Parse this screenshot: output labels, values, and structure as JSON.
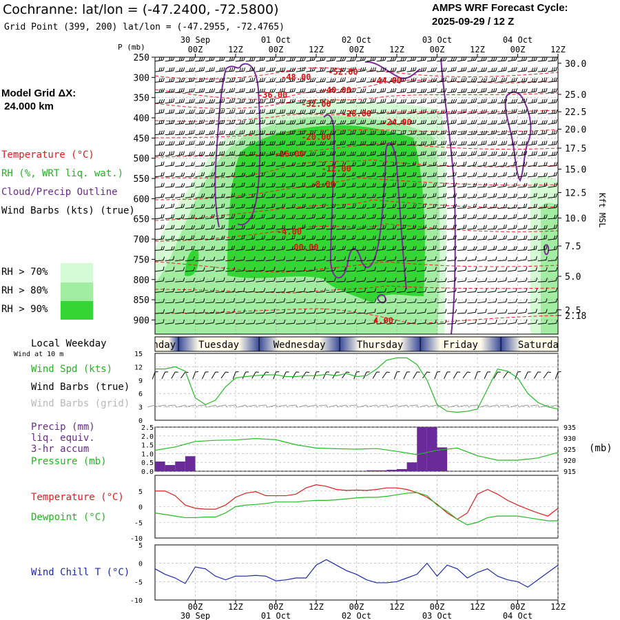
{
  "header": {
    "title": "Cochranne:  lat/lon = (-47.2400, -72.5800)",
    "grid_point": "Grid Point (399, 200) lat/lon = (-47.2955, -72.4765)",
    "forecast_line1": "AMPS WRF Forecast Cycle:",
    "forecast_line2": "2025-09-29 / 12  Z",
    "model_grid_line1": "Model Grid ΔX:",
    "model_grid_line2": " 24.000 km"
  },
  "legend": {
    "temperature": "Temperature (°C)",
    "rh": "RH (%, WRT liq. wat.)",
    "cloud": "Cloud/Precip Outline",
    "wind": "Wind Barbs (kts) (true)",
    "rh70": "RH > 70%",
    "rh80": "RH > 80%",
    "rh90": "RH > 90%",
    "rh_colors": [
      "#d4fbd4",
      "#a3eda3",
      "#33d633"
    ],
    "local_weekday": "Local Weekday",
    "wind_at_10m": "Wind at 10 m",
    "wind_spd": "Wind Spd (kts)",
    "wind_barbs_true": "Wind Barbs (true)",
    "wind_barbs_grid": "Wind Barbs (grid)",
    "precip_1": "Precip (mm)",
    "precip_2": "liq. equiv.",
    "precip_3": "3-hr accum",
    "pressure": "Pressure (mb)",
    "temp2": "Temperature (°C)",
    "dewpoint": "Dewpoint (°C)",
    "windchill": "Wind Chill T (°C)",
    "pressure_unit": "(mb)",
    "kft_label": "Kft MSL",
    "p_label": "P (mb)"
  },
  "chart_data": {
    "type": "meteogram",
    "time_ticks": [
      "00Z",
      "12Z",
      "00Z",
      "12Z",
      "00Z",
      "12Z",
      "00Z",
      "12Z",
      "00Z",
      "12Z"
    ],
    "time_hours": [
      12,
      24,
      36,
      48,
      60,
      72,
      84,
      96,
      108,
      120
    ],
    "date_labels": [
      {
        "label": "30 Sep",
        "hour": 12
      },
      {
        "label": "01 Oct",
        "hour": 36
      },
      {
        "label": "02 Oct",
        "hour": 60
      },
      {
        "label": "03 Oct",
        "hour": 84
      },
      {
        "label": "04 Oct",
        "hour": 108
      }
    ],
    "x_range_hours": [
      0,
      120
    ],
    "weekdays": [
      {
        "label": "Monday",
        "start": -5,
        "end": 7
      },
      {
        "label": "Tuesday",
        "start": 7,
        "end": 31
      },
      {
        "label": "Wednesday",
        "start": 31,
        "end": 55
      },
      {
        "label": "Thursday",
        "start": 55,
        "end": 79
      },
      {
        "label": "Friday",
        "start": 79,
        "end": 103
      },
      {
        "label": "Saturday",
        "start": 103,
        "end": 127
      }
    ],
    "cross_section": {
      "pressure_ticks": [
        250,
        300,
        350,
        400,
        450,
        500,
        550,
        600,
        650,
        700,
        750,
        800,
        850,
        900
      ],
      "p_range": [
        250,
        935
      ],
      "height_ticks_kft": [
        {
          "label": "30.0",
          "p": 265
        },
        {
          "label": "25.0",
          "p": 342
        },
        {
          "label": "22.5",
          "p": 385
        },
        {
          "label": "20.0",
          "p": 428
        },
        {
          "label": "17.5",
          "p": 475
        },
        {
          "label": "15.0",
          "p": 527
        },
        {
          "label": "12.5",
          "p": 585
        },
        {
          "label": "10.0",
          "p": 648
        },
        {
          "label": "7.5",
          "p": 717
        },
        {
          "label": "5.0",
          "p": 792
        },
        {
          "label": "2.5",
          "p": 875
        },
        {
          "label": "2.18",
          "p": 889
        }
      ],
      "temperature_labels": [
        {
          "label": "-48.00",
          "h": 42,
          "p": 298
        },
        {
          "label": "-52.00",
          "h": 56,
          "p": 285
        },
        {
          "label": "-44.00",
          "h": 69,
          "p": 306
        },
        {
          "label": "-40.00",
          "h": 54,
          "p": 330
        },
        {
          "label": "-36.00",
          "h": 35,
          "p": 342
        },
        {
          "label": "-32.00",
          "h": 48,
          "p": 364
        },
        {
          "label": "-28.00",
          "h": 60,
          "p": 388
        },
        {
          "label": "-24.00",
          "h": 72,
          "p": 409
        },
        {
          "label": "-20.00",
          "h": 48,
          "p": 446
        },
        {
          "label": "-16.00",
          "h": 40,
          "p": 488
        },
        {
          "label": "-12.00",
          "h": 54,
          "p": 524
        },
        {
          "label": "-8.00",
          "h": 50,
          "p": 563
        },
        {
          "label": "-4.00",
          "h": 40,
          "p": 680
        },
        {
          "label": "00.00",
          "h": 45,
          "p": 719
        },
        {
          "label": "4.00",
          "h": 68,
          "p": 900
        }
      ]
    },
    "surface_wind": {
      "ylim": [
        0,
        15
      ],
      "yticks": [
        0,
        3,
        6,
        9,
        12,
        15
      ],
      "x": [
        0,
        3,
        6,
        9,
        12,
        15,
        18,
        21,
        24,
        27,
        30,
        33,
        36,
        39,
        42,
        45,
        48,
        51,
        54,
        57,
        60,
        63,
        66,
        69,
        72,
        75,
        78,
        81,
        84,
        87,
        90,
        93,
        96,
        99,
        102,
        105,
        108,
        111,
        114,
        117,
        120
      ],
      "speed_kts": [
        11.5,
        11.5,
        12.0,
        11.0,
        5.0,
        3.5,
        4.5,
        7.5,
        9.5,
        9.8,
        10.0,
        10.2,
        10.2,
        9.8,
        9.8,
        10.0,
        10.0,
        10.3,
        10.0,
        10.5,
        9.8,
        10.0,
        11.5,
        13.5,
        14.0,
        14.0,
        12.5,
        9.0,
        3.5,
        2.0,
        1.8,
        2.0,
        2.5,
        7.0,
        11.5,
        11.0,
        9.5,
        6.0,
        4.0,
        3.0,
        2.5
      ]
    },
    "precip_pressure": {
      "precip_ylim": [
        0,
        2.5
      ],
      "precip_yticks": [
        0.0,
        0.5,
        1.0,
        1.5,
        2.0,
        2.5
      ],
      "pressure_ylim": [
        915,
        935
      ],
      "pressure_yticks": [
        915,
        920,
        925,
        930,
        935
      ],
      "precip_bars": [
        {
          "h": 0,
          "mm": 0.55
        },
        {
          "h": 3,
          "mm": 0.35
        },
        {
          "h": 6,
          "mm": 0.55
        },
        {
          "h": 9,
          "mm": 0.85
        },
        {
          "h": 63,
          "mm": 0.05
        },
        {
          "h": 66,
          "mm": 0.05
        },
        {
          "h": 69,
          "mm": 0.08
        },
        {
          "h": 72,
          "mm": 0.12
        },
        {
          "h": 75,
          "mm": 0.5
        },
        {
          "h": 78,
          "mm": 2.5
        },
        {
          "h": 81,
          "mm": 2.5
        },
        {
          "h": 84,
          "mm": 1.35
        }
      ],
      "pressure_x": [
        0,
        6,
        12,
        18,
        24,
        30,
        36,
        42,
        48,
        54,
        60,
        66,
        72,
        78,
        84,
        90,
        96,
        102,
        108,
        114,
        120
      ],
      "pressure_mb": [
        924.5,
        926.0,
        928.5,
        929.0,
        929.2,
        929.8,
        929.3,
        927.0,
        925.5,
        925.2,
        925.0,
        925.3,
        924.0,
        922.5,
        924.5,
        925.5,
        922.0,
        920.0,
        920.0,
        921.0,
        923.5
      ]
    },
    "temp_dew": {
      "ylim": [
        -10,
        10
      ],
      "yticks": [
        -10,
        -5,
        0,
        5
      ],
      "x": [
        0,
        3,
        6,
        9,
        12,
        15,
        18,
        21,
        24,
        27,
        30,
        33,
        36,
        39,
        42,
        45,
        48,
        51,
        54,
        57,
        60,
        63,
        66,
        69,
        72,
        75,
        78,
        81,
        84,
        87,
        90,
        93,
        96,
        99,
        102,
        105,
        108,
        111,
        114,
        117,
        120
      ],
      "temperature": [
        5.0,
        5.0,
        3.5,
        0.5,
        -0.5,
        -0.8,
        -0.8,
        0.5,
        3.0,
        4.3,
        4.8,
        3.5,
        3.5,
        3.5,
        4.0,
        6.0,
        7.0,
        6.5,
        5.5,
        5.2,
        5.3,
        5.2,
        5.5,
        6.0,
        6.0,
        5.5,
        4.5,
        3.0,
        0.8,
        -2.0,
        -4.0,
        -2.0,
        4.0,
        5.5,
        4.0,
        2.0,
        0.5,
        -0.8,
        -2.0,
        -3.0,
        -0.5
      ],
      "dewpoint": [
        -2.0,
        -2.5,
        -3.0,
        -3.5,
        -3.5,
        -3.3,
        -3.3,
        -2.0,
        0.0,
        0.5,
        0.7,
        1.0,
        1.5,
        1.5,
        1.5,
        1.8,
        2.0,
        2.0,
        2.2,
        2.5,
        2.8,
        3.0,
        3.0,
        3.3,
        3.8,
        4.3,
        4.5,
        3.5,
        0.5,
        -1.5,
        -4.0,
        -5.8,
        -5.0,
        -3.5,
        -3.0,
        -3.0,
        -3.0,
        -3.5,
        -4.0,
        -4.5,
        -4.5
      ]
    },
    "wind_chill": {
      "ylim": [
        -10,
        5
      ],
      "yticks": [
        -10,
        -5,
        0,
        5
      ],
      "x": [
        0,
        3,
        6,
        9,
        12,
        15,
        18,
        21,
        24,
        27,
        30,
        33,
        36,
        39,
        42,
        45,
        48,
        51,
        54,
        57,
        60,
        63,
        66,
        69,
        72,
        75,
        78,
        81,
        84,
        87,
        90,
        93,
        96,
        99,
        102,
        105,
        108,
        111,
        114,
        117,
        120
      ],
      "windchill": [
        -1.5,
        -3.0,
        -4.0,
        -5.5,
        -1.0,
        -1.5,
        -3.5,
        -4.5,
        -3.5,
        -3.5,
        -3.3,
        -3.5,
        -4.8,
        -4.5,
        -4.0,
        -4.0,
        -0.5,
        1.0,
        -0.5,
        -2.0,
        -3.0,
        -4.5,
        -5.3,
        -5.3,
        -5.0,
        -4.0,
        -3.0,
        0.0,
        -3.5,
        -0.5,
        -1.5,
        -4.0,
        -2.5,
        -1.5,
        -3.5,
        -4.5,
        -5.0,
        -6.5,
        -4.5,
        -2.5,
        -0.5
      ]
    }
  }
}
